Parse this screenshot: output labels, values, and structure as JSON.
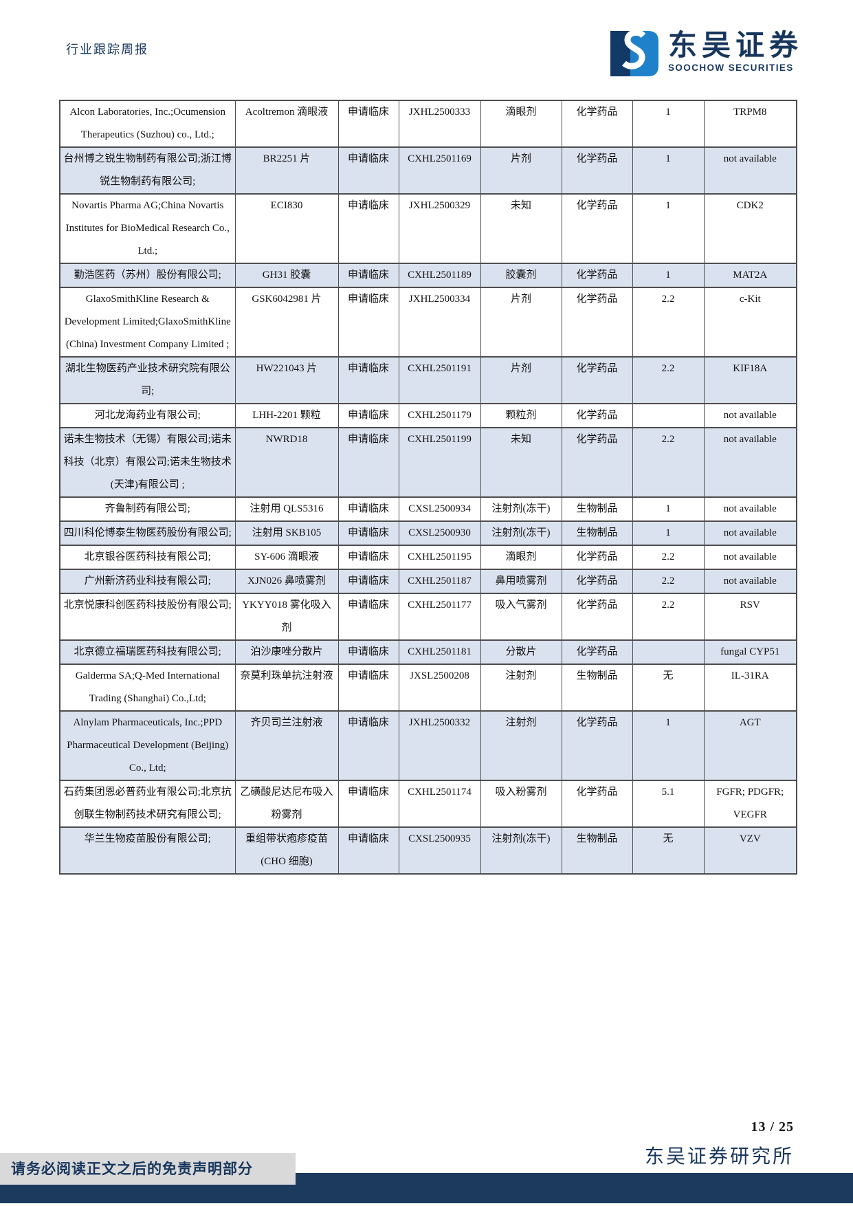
{
  "header": {
    "report_type": "行业跟踪周报",
    "brand": {
      "name_cn": "东吴证券",
      "name_en": "SOOCHOW SECURITIES"
    }
  },
  "colors": {
    "navy": "#17365d",
    "logo_blue": "#1e81c9",
    "logo_dark": "#133a66",
    "row_shade": "#dbe2ef",
    "bottom_bar": "#1c3a5e",
    "disclaimer_bg": "#d9d9d9"
  },
  "table": {
    "columns": [
      "company",
      "drug",
      "apply_type",
      "accept_no",
      "dosage_form",
      "drug_type",
      "category",
      "target"
    ],
    "rows": [
      {
        "company": "Alcon Laboratories, Inc.;Ocumension Therapeutics (Suzhou) co., Ltd.;",
        "drug": "Acoltremon 滴眼液",
        "apply_type": "申请临床",
        "accept_no": "JXHL2500333",
        "dosage_form": "滴眼剂",
        "drug_type": "化学药品",
        "category": "1",
        "target": "TRPM8"
      },
      {
        "company": "台州博之锐生物制药有限公司;浙江博锐生物制药有限公司;",
        "drug": "BR2251 片",
        "apply_type": "申请临床",
        "accept_no": "CXHL2501169",
        "dosage_form": "片剂",
        "drug_type": "化学药品",
        "category": "1",
        "target": "not available"
      },
      {
        "company": "Novartis Pharma AG;China Novartis Institutes for BioMedical Research Co., Ltd.;",
        "drug": "ECI830",
        "apply_type": "申请临床",
        "accept_no": "JXHL2500329",
        "dosage_form": "未知",
        "drug_type": "化学药品",
        "category": "1",
        "target": "CDK2"
      },
      {
        "company": "勤浩医药（苏州）股份有限公司;",
        "drug": "GH31 胶囊",
        "apply_type": "申请临床",
        "accept_no": "CXHL2501189",
        "dosage_form": "胶囊剂",
        "drug_type": "化学药品",
        "category": "1",
        "target": "MAT2A"
      },
      {
        "company": "GlaxoSmithKline Research & Development Limited;GlaxoSmithKline (China) Investment Company Limited ;",
        "drug": "GSK6042981 片",
        "apply_type": "申请临床",
        "accept_no": "JXHL2500334",
        "dosage_form": "片剂",
        "drug_type": "化学药品",
        "category": "2.2",
        "target": "c-Kit"
      },
      {
        "company": "湖北生物医药产业技术研究院有限公司;",
        "drug": "HW221043 片",
        "apply_type": "申请临床",
        "accept_no": "CXHL2501191",
        "dosage_form": "片剂",
        "drug_type": "化学药品",
        "category": "2.2",
        "target": "KIF18A"
      },
      {
        "company": "河北龙海药业有限公司;",
        "drug": "LHH-2201 颗粒",
        "apply_type": "申请临床",
        "accept_no": "CXHL2501179",
        "dosage_form": "颗粒剂",
        "drug_type": "化学药品",
        "category": "",
        "target": "not available"
      },
      {
        "company": "诺未生物技术（无锡）有限公司;诺未科技（北京）有限公司;诺未生物技术(天津)有限公司 ;",
        "drug": "NWRD18",
        "apply_type": "申请临床",
        "accept_no": "CXHL2501199",
        "dosage_form": "未知",
        "drug_type": "化学药品",
        "category": "2.2",
        "target": "not available"
      },
      {
        "company": "齐鲁制药有限公司;",
        "drug": "注射用 QLS5316",
        "apply_type": "申请临床",
        "accept_no": "CXSL2500934",
        "dosage_form": "注射剂(冻干)",
        "drug_type": "生物制品",
        "category": "1",
        "target": "not available"
      },
      {
        "company": "四川科伦博泰生物医药股份有限公司;",
        "drug": "注射用 SKB105",
        "apply_type": "申请临床",
        "accept_no": "CXSL2500930",
        "dosage_form": "注射剂(冻干)",
        "drug_type": "生物制品",
        "category": "1",
        "target": "not available"
      },
      {
        "company": "北京银谷医药科技有限公司;",
        "drug": "SY-606 滴眼液",
        "apply_type": "申请临床",
        "accept_no": "CXHL2501195",
        "dosage_form": "滴眼剂",
        "drug_type": "化学药品",
        "category": "2.2",
        "target": "not available"
      },
      {
        "company": "广州新济药业科技有限公司;",
        "drug": "XJN026 鼻喷雾剂",
        "apply_type": "申请临床",
        "accept_no": "CXHL2501187",
        "dosage_form": "鼻用喷雾剂",
        "drug_type": "化学药品",
        "category": "2.2",
        "target": "not available"
      },
      {
        "company": "北京悦康科创医药科技股份有限公司;",
        "drug": "YKYY018 雾化吸入剂",
        "apply_type": "申请临床",
        "accept_no": "CXHL2501177",
        "dosage_form": "吸入气雾剂",
        "drug_type": "化学药品",
        "category": "2.2",
        "target": "RSV"
      },
      {
        "company": "北京德立福瑞医药科技有限公司;",
        "drug": "泊沙康唑分散片",
        "apply_type": "申请临床",
        "accept_no": "CXHL2501181",
        "dosage_form": "分散片",
        "drug_type": "化学药品",
        "category": "",
        "target": "fungal CYP51"
      },
      {
        "company": "Galderma SA;Q-Med International Trading (Shanghai) Co.,Ltd;",
        "drug": "奈莫利珠单抗注射液",
        "apply_type": "申请临床",
        "accept_no": "JXSL2500208",
        "dosage_form": "注射剂",
        "drug_type": "生物制品",
        "category": "无",
        "target": "IL-31RA"
      },
      {
        "company": "Alnylam Pharmaceuticals, Inc.;PPD Pharmaceutical Development (Beijing) Co., Ltd;",
        "drug": "齐贝司兰注射液",
        "apply_type": "申请临床",
        "accept_no": "JXHL2500332",
        "dosage_form": "注射剂",
        "drug_type": "化学药品",
        "category": "1",
        "target": "AGT"
      },
      {
        "company": "石药集团恩必普药业有限公司;北京抗创联生物制药技术研究有限公司;",
        "drug": "乙磺酸尼达尼布吸入粉雾剂",
        "apply_type": "申请临床",
        "accept_no": "CXHL2501174",
        "dosage_form": "吸入粉雾剂",
        "drug_type": "化学药品",
        "category": "5.1",
        "target": "FGFR;  PDGFR;  VEGFR"
      },
      {
        "company": "华兰生物疫苗股份有限公司;",
        "drug": "重组带状疱疹疫苗(CHO 细胞)",
        "apply_type": "申请临床",
        "accept_no": "CXSL2500935",
        "dosage_form": "注射剂(冻干)",
        "drug_type": "生物制品",
        "category": "无",
        "target": "VZV"
      }
    ]
  },
  "footer": {
    "page": "13 / 25",
    "institute": "东吴证券研究所",
    "disclaimer": "请务必阅读正文之后的免责声明部分"
  }
}
